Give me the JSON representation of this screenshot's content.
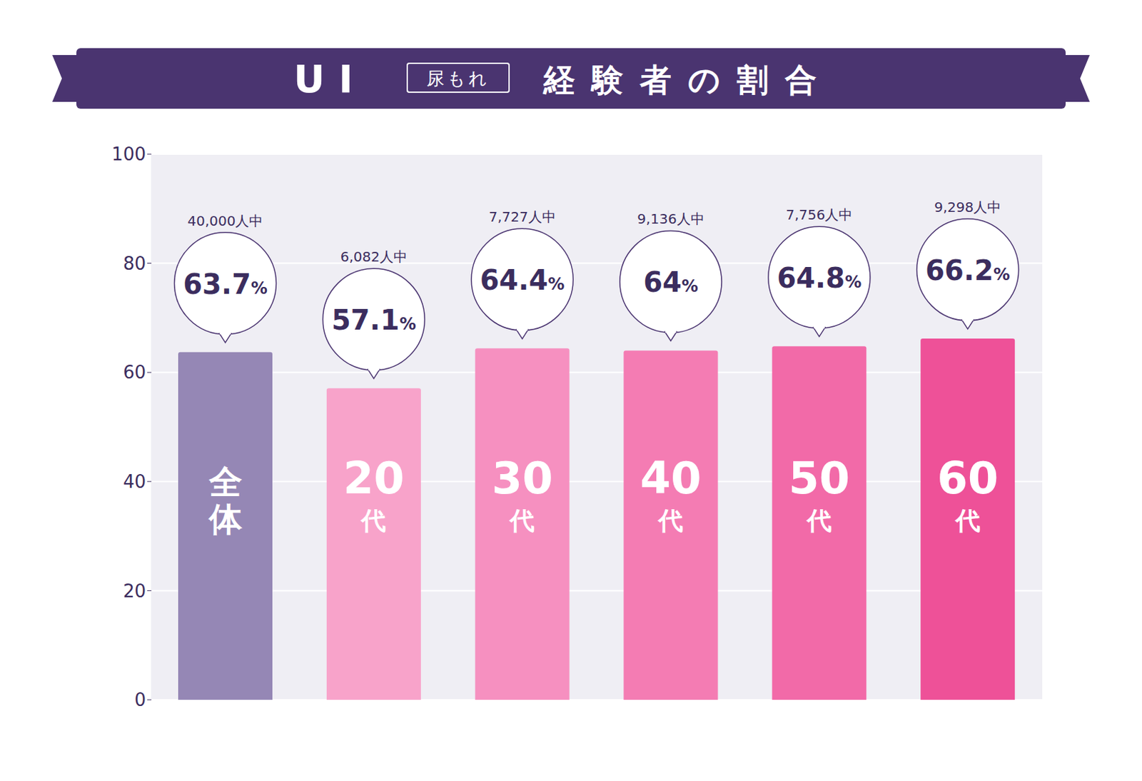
{
  "chart_data": {
    "type": "bar",
    "title": "UI 尿もれ 経験者の割合",
    "categories": [
      "全体",
      "20代",
      "30代",
      "40代",
      "50代",
      "60代"
    ],
    "values": [
      63.7,
      57.1,
      64.4,
      64,
      64.8,
      66.2
    ],
    "value_labels": [
      "63.7%",
      "57.1%",
      "64.4%",
      "64%",
      "64.8%",
      "66.2%"
    ],
    "sample_sizes": [
      40000,
      6082,
      7727,
      9136,
      7756,
      9298
    ],
    "sample_labels": [
      "40,000人中",
      "6,082人中",
      "7,727人中",
      "9,136人中",
      "7,756人中",
      "9,298人中"
    ],
    "colors": [
      "#9587b5",
      "#f8a3ca",
      "#f690c0",
      "#f47cb3",
      "#f26aa8",
      "#ee5198"
    ],
    "ylim": [
      0,
      100
    ],
    "yticks": [
      0,
      20,
      40,
      60,
      80,
      100
    ],
    "grid": true,
    "data_labels": true,
    "tick_labels": "y"
  }
}
